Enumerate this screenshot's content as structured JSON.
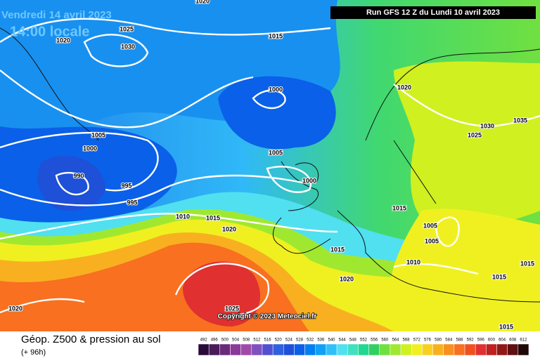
{
  "header": {
    "date": "Vendredi 14 avril 2023",
    "time": "14:00 locale",
    "run": "Run GFS 12 Z du Lundi 10 avril 2023"
  },
  "isobar_labels": [
    1020,
    1025,
    1020,
    1030,
    1015,
    1020,
    1000,
    1005,
    1000,
    1035,
    1030,
    1025,
    1005,
    990,
    995,
    1000,
    995,
    1015,
    1010,
    1015,
    1020,
    1005,
    1005,
    1015,
    1010,
    1015,
    1020,
    1015,
    1020,
    1025,
    1015
  ],
  "copyright": "Copyright © 2023 Meteociel.fr",
  "legend": {
    "title": "Géop. Z500 & pression au sol",
    "range": "(+ 96h)",
    "scale": [
      492,
      496,
      500,
      504,
      508,
      512,
      516,
      520,
      524,
      528,
      532,
      536,
      540,
      544,
      548,
      552,
      556,
      560,
      564,
      568,
      572,
      576,
      580,
      584,
      588,
      592,
      596,
      600,
      604,
      608,
      612
    ],
    "colors": [
      "#2a0a3a",
      "#4a1a5a",
      "#6a2a7a",
      "#8a3a9a",
      "#a04aa8",
      "#8050c0",
      "#5050d0",
      "#3060e0",
      "#1e50d8",
      "#0a60e8",
      "#0080f0",
      "#10a0f8",
      "#30c0f8",
      "#50e0f0",
      "#40e0c0",
      "#20d890",
      "#30d060",
      "#70e040",
      "#a0e830",
      "#d0f020",
      "#f0f020",
      "#f8d020",
      "#f8b020",
      "#f89020",
      "#f87020",
      "#f05020",
      "#e03030",
      "#c02020",
      "#901818",
      "#601010",
      "#200808"
    ]
  }
}
